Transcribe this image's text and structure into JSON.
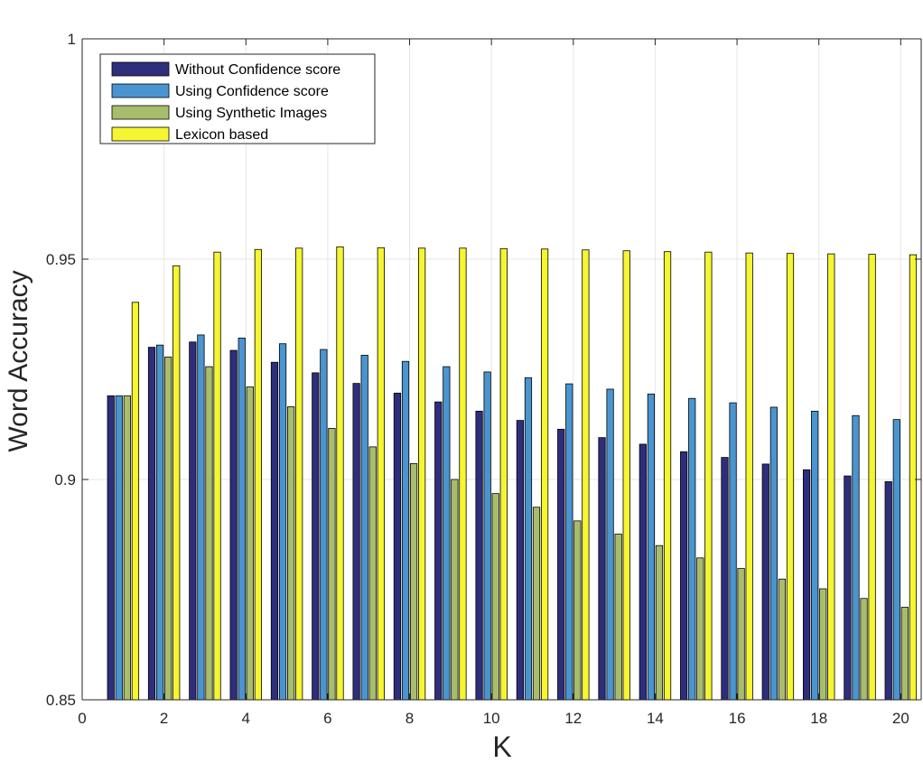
{
  "chart_data": {
    "type": "bar",
    "title": "",
    "xlabel": "K",
    "ylabel": "Word Accuracy",
    "xlim": [
      0,
      20.5
    ],
    "ylim": [
      0.85,
      1.0
    ],
    "xticks": [
      0,
      2,
      4,
      6,
      8,
      10,
      12,
      14,
      16,
      18,
      20
    ],
    "xtick_labels": [
      "0",
      "2",
      "4",
      "6",
      "8",
      "10",
      "12",
      "14",
      "16",
      "18",
      "20"
    ],
    "yticks": [
      0.85,
      0.9,
      0.95,
      1.0
    ],
    "ytick_labels": [
      "0.85",
      "0.9",
      "0.95",
      "1"
    ],
    "grid": true,
    "legend_position": "top-left",
    "categories": [
      1,
      2,
      3,
      4,
      5,
      6,
      7,
      8,
      9,
      10,
      11,
      12,
      13,
      14,
      15,
      16,
      17,
      18,
      19,
      20
    ],
    "series": [
      {
        "name": "Without Confidence score",
        "color": "#2e2e7d",
        "values": [
          0.919,
          0.93,
          0.9312,
          0.9293,
          0.9266,
          0.9242,
          0.9218,
          0.9196,
          0.9176,
          0.9155,
          0.9134,
          0.9114,
          0.9095,
          0.908,
          0.9063,
          0.905,
          0.9035,
          0.9022,
          0.9008,
          0.8995
        ]
      },
      {
        "name": "Using Confidence score",
        "color": "#4a95d0",
        "values": [
          0.919,
          0.9305,
          0.9328,
          0.9321,
          0.9308,
          0.9295,
          0.9282,
          0.9268,
          0.9256,
          0.9244,
          0.9231,
          0.9217,
          0.9205,
          0.9194,
          0.9184,
          0.9174,
          0.9164,
          0.9155,
          0.9145,
          0.9136
        ]
      },
      {
        "name": "Using Synthetic Images",
        "color": "#a8bd6c",
        "values": [
          0.919,
          0.9278,
          0.9256,
          0.921,
          0.9165,
          0.9116,
          0.9074,
          0.9036,
          0.9,
          0.8968,
          0.8937,
          0.8906,
          0.8876,
          0.885,
          0.8822,
          0.8798,
          0.8774,
          0.8752,
          0.873,
          0.871
        ]
      },
      {
        "name": "Lexicon based",
        "color": "#f5f531",
        "values": [
          0.9402,
          0.9485,
          0.9516,
          0.9522,
          0.9525,
          0.9528,
          0.9526,
          0.9525,
          0.9525,
          0.9524,
          0.9523,
          0.9521,
          0.9519,
          0.9517,
          0.9516,
          0.9514,
          0.9513,
          0.9512,
          0.9511,
          0.951
        ]
      }
    ]
  }
}
